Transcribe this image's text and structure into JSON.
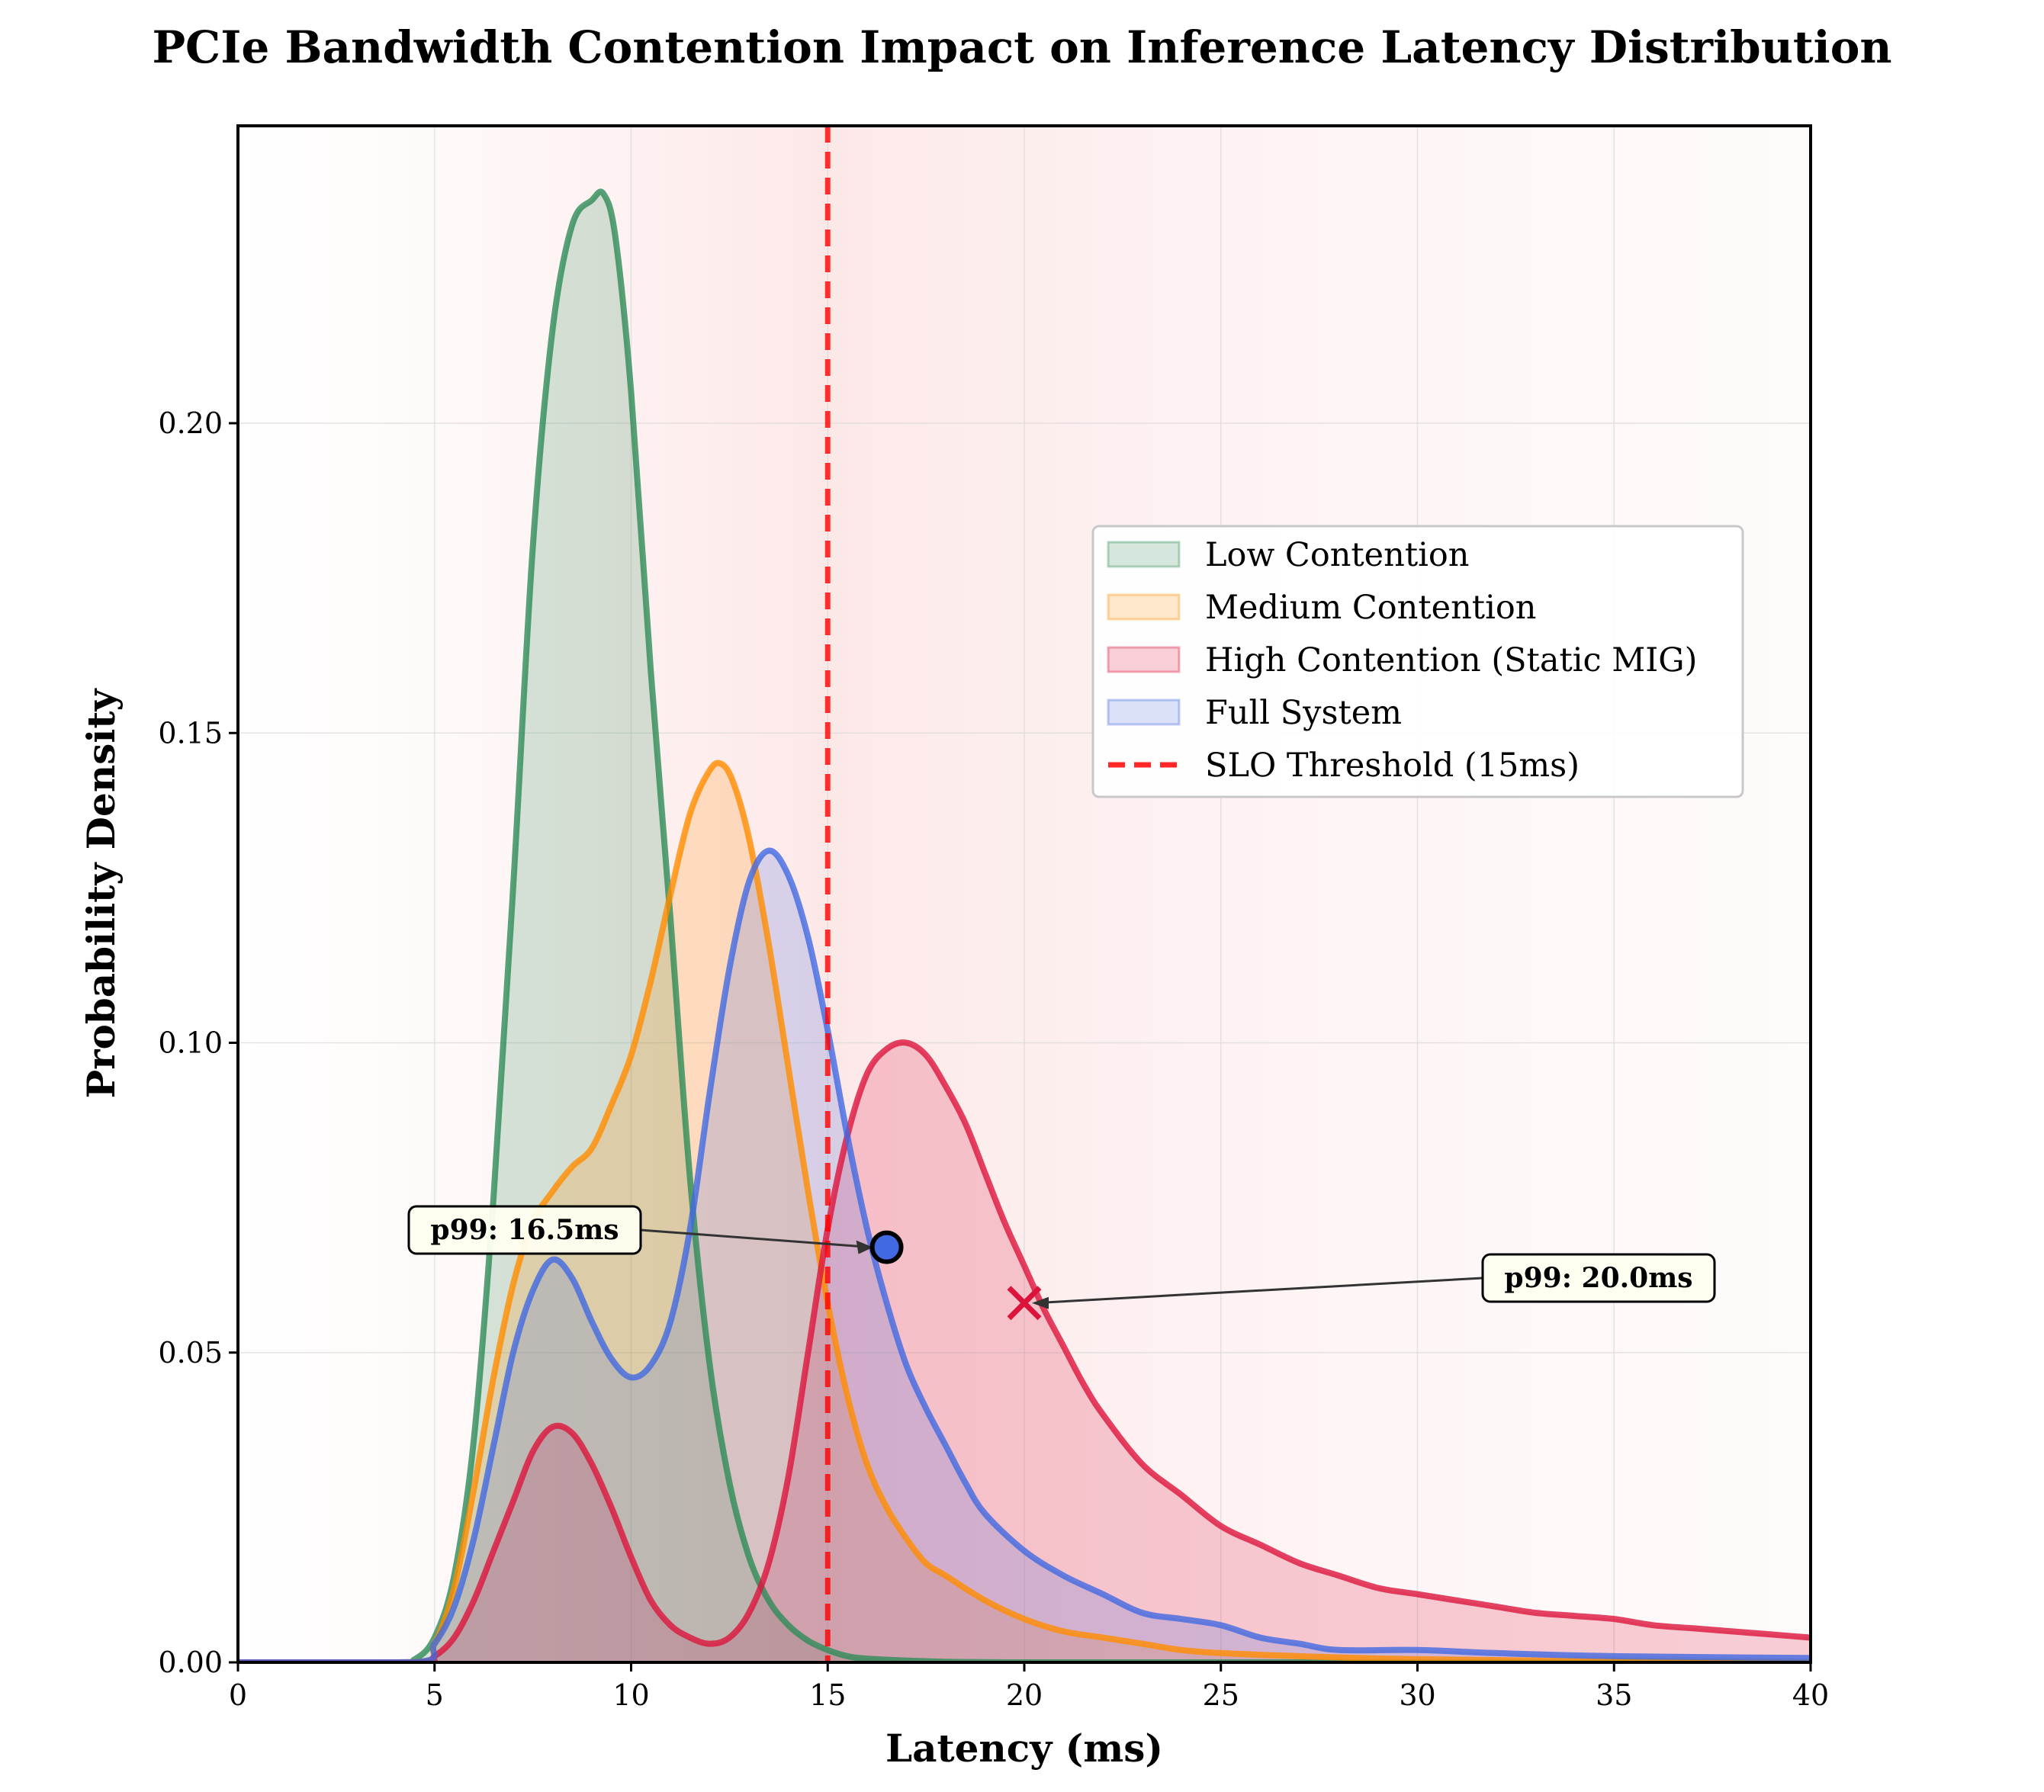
{
  "chart_data": {
    "type": "area",
    "title": "PCIe Bandwidth Contention Impact on Inference Latency Distribution",
    "xlabel": "Latency (ms)",
    "ylabel": "Probability Density",
    "xlim": [
      0,
      40
    ],
    "ylim": [
      0,
      0.248
    ],
    "xticks": [
      "0",
      "5",
      "10",
      "15",
      "20",
      "25",
      "30",
      "35",
      "40"
    ],
    "yticks": [
      "0.00",
      "0.05",
      "0.10",
      "0.15",
      "0.20"
    ],
    "grid": true,
    "legend_position": "center-right",
    "series": [
      {
        "name": "Low Contention",
        "color": "#2e8b57",
        "x": [
          0,
          4,
          4.5,
          5,
          5.5,
          6,
          6.5,
          7,
          7.5,
          8,
          8.5,
          9,
          9.3,
          9.6,
          10,
          10.5,
          11,
          11.5,
          12,
          12.5,
          13,
          13.5,
          14,
          14.5,
          15,
          15.5,
          16,
          17,
          18,
          20,
          25,
          30,
          40
        ],
        "values": [
          0,
          0,
          0.0005,
          0.004,
          0.014,
          0.036,
          0.075,
          0.125,
          0.18,
          0.215,
          0.232,
          0.236,
          0.237,
          0.23,
          0.205,
          0.16,
          0.12,
          0.078,
          0.048,
          0.029,
          0.017,
          0.01,
          0.006,
          0.0035,
          0.002,
          0.001,
          0.0006,
          0.0003,
          0.0001,
          0,
          0,
          0,
          0
        ]
      },
      {
        "name": "Medium Contention",
        "color": "#ff8c00",
        "x": [
          0,
          4.5,
          5,
          5.5,
          6,
          6.5,
          7,
          7.5,
          8,
          8.5,
          9,
          9.5,
          10,
          10.5,
          11,
          11.5,
          12,
          12.3,
          12.6,
          13,
          13.5,
          14,
          14.5,
          15,
          15.5,
          16,
          16.5,
          17,
          17.5,
          18,
          19,
          20,
          21,
          22,
          23,
          24,
          25,
          27,
          30,
          35,
          40
        ],
        "values": [
          0,
          0,
          0.003,
          0.012,
          0.028,
          0.046,
          0.061,
          0.071,
          0.076,
          0.08,
          0.083,
          0.09,
          0.098,
          0.11,
          0.124,
          0.137,
          0.144,
          0.145,
          0.142,
          0.133,
          0.116,
          0.096,
          0.076,
          0.058,
          0.043,
          0.032,
          0.025,
          0.02,
          0.016,
          0.014,
          0.01,
          0.007,
          0.005,
          0.004,
          0.003,
          0.002,
          0.0015,
          0.001,
          0.0005,
          0.0002,
          0
        ]
      },
      {
        "name": "High Contention (Static MIG)",
        "color": "#dc143c",
        "x": [
          0,
          4.5,
          5,
          5.5,
          6,
          6.5,
          7,
          7.5,
          8,
          8.5,
          9,
          9.5,
          10,
          10.5,
          11,
          11.5,
          12,
          12.5,
          13,
          13.5,
          14,
          14.5,
          15,
          15.5,
          16,
          16.5,
          17,
          17.5,
          18,
          18.5,
          19,
          19.5,
          20,
          20.5,
          21,
          21.5,
          22,
          23,
          24,
          25,
          26,
          27,
          28,
          29,
          30,
          31,
          32,
          33,
          34,
          35,
          36,
          37,
          38,
          39,
          40
        ],
        "values": [
          0,
          0,
          0.001,
          0.004,
          0.01,
          0.018,
          0.026,
          0.034,
          0.038,
          0.037,
          0.032,
          0.025,
          0.017,
          0.01,
          0.006,
          0.004,
          0.003,
          0.004,
          0.008,
          0.016,
          0.03,
          0.05,
          0.07,
          0.085,
          0.095,
          0.099,
          0.1,
          0.098,
          0.093,
          0.087,
          0.079,
          0.071,
          0.064,
          0.057,
          0.051,
          0.045,
          0.04,
          0.032,
          0.027,
          0.022,
          0.019,
          0.016,
          0.014,
          0.012,
          0.011,
          0.01,
          0.009,
          0.008,
          0.0075,
          0.007,
          0.006,
          0.0055,
          0.005,
          0.0045,
          0.004
        ]
      },
      {
        "name": "Full System",
        "color": "#4169e1",
        "x": [
          0,
          4.5,
          5,
          5.5,
          6,
          6.5,
          7,
          7.5,
          8,
          8.5,
          9,
          9.5,
          10,
          10.5,
          11,
          11.5,
          12,
          12.5,
          13,
          13.5,
          14,
          14.5,
          15,
          15.5,
          16,
          16.5,
          17,
          17.5,
          18,
          18.5,
          19,
          20,
          21,
          22,
          23,
          24,
          25,
          26,
          27,
          28,
          30,
          32,
          35,
          40
        ],
        "values": [
          0,
          0,
          0.003,
          0.009,
          0.02,
          0.035,
          0.05,
          0.06,
          0.065,
          0.062,
          0.055,
          0.049,
          0.046,
          0.048,
          0.055,
          0.07,
          0.092,
          0.112,
          0.126,
          0.131,
          0.127,
          0.117,
          0.102,
          0.085,
          0.07,
          0.058,
          0.048,
          0.041,
          0.035,
          0.029,
          0.024,
          0.018,
          0.014,
          0.011,
          0.008,
          0.007,
          0.006,
          0.004,
          0.003,
          0.002,
          0.002,
          0.0015,
          0.001,
          0.0007
        ]
      }
    ],
    "reference_line": {
      "name": "SLO Threshold (15ms)",
      "x": 15,
      "color": "#ff0000"
    },
    "annotations": [
      {
        "text": "p99: 16.5ms",
        "x": 16.5,
        "y": 0.067,
        "marker": "circle",
        "color": "#4169e1"
      },
      {
        "text": "p99: 20.0ms",
        "x": 20.0,
        "y": 0.058,
        "marker": "x",
        "color": "#dc143c"
      }
    ]
  }
}
